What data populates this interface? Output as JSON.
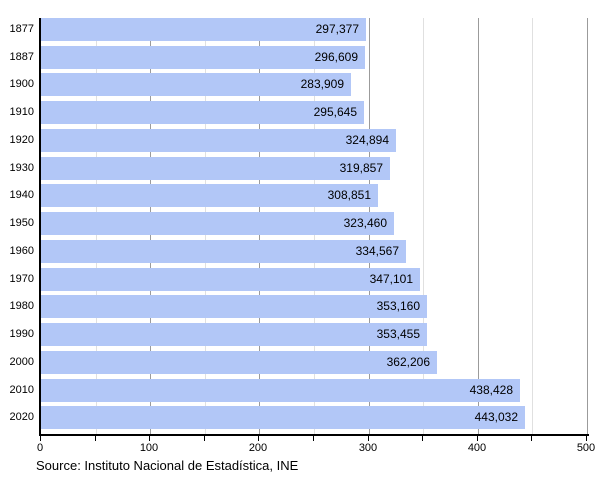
{
  "chart_data": {
    "type": "bar",
    "orientation": "horizontal",
    "title": "",
    "categories": [
      "1877",
      "1887",
      "1900",
      "1910",
      "1920",
      "1930",
      "1940",
      "1950",
      "1960",
      "1970",
      "1980",
      "1990",
      "2000",
      "2010",
      "2020"
    ],
    "values": [
      297377,
      296609,
      283909,
      295645,
      324894,
      319857,
      308851,
      323460,
      334567,
      347101,
      353160,
      353455,
      362206,
      438428,
      443032
    ],
    "value_labels": [
      "297,377",
      "296,609",
      "283,909",
      "295,645",
      "324,894",
      "319,857",
      "308,851",
      "323,460",
      "334,567",
      "347,101",
      "353,160",
      "353,455",
      "362,206",
      "438,428",
      "443,032"
    ],
    "x_axis": {
      "min": 0,
      "max": 500,
      "tick_labels": [
        "0",
        "100",
        "200",
        "300",
        "400",
        "500"
      ],
      "major_tick_step": 100,
      "minor_tick_step": 50
    },
    "grid": true,
    "legend": false
  },
  "source_note": "Source: Instituto Nacional de Estadística, INE",
  "colors": {
    "background": "#ffffff",
    "bar_fill": "#b2c7f7",
    "grid_major": "#9b9b9b",
    "grid_minor": "#e0e0e0",
    "axis": "#000000",
    "text": "#000000"
  }
}
